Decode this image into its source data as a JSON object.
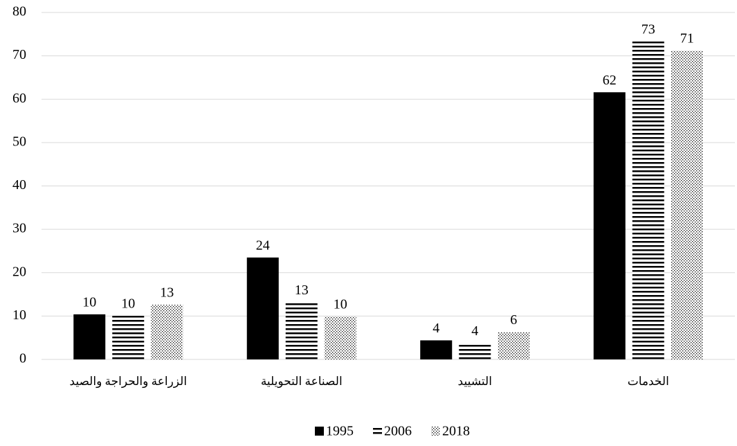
{
  "chart_data": {
    "type": "bar",
    "categories": [
      "الزراعة والحراجة والصيد",
      "الصناعة التحويلية",
      "التشييد",
      "الخدمات"
    ],
    "series": [
      {
        "name": "1995",
        "color": "#000000",
        "pattern": "solid",
        "values": [
          10.4,
          23.5,
          4.4,
          61.6
        ],
        "value_labels": [
          "10",
          "24",
          "4",
          "62"
        ]
      },
      {
        "name": "2006",
        "color": "#000000",
        "pattern": "horizontal-lines",
        "values": [
          10.1,
          13.2,
          3.8,
          73.3
        ],
        "value_labels": [
          "10",
          "13",
          "4",
          "73"
        ]
      },
      {
        "name": "2018",
        "color": "#000000",
        "pattern": "dots",
        "values": [
          12.6,
          9.9,
          6.3,
          71.2
        ],
        "value_labels": [
          "13",
          "10",
          "6",
          "71"
        ]
      }
    ],
    "ylim": [
      0,
      80
    ],
    "yticks": [
      0,
      10,
      20,
      30,
      40,
      50,
      60,
      70,
      80
    ],
    "grid": true,
    "legend": "bottom"
  }
}
